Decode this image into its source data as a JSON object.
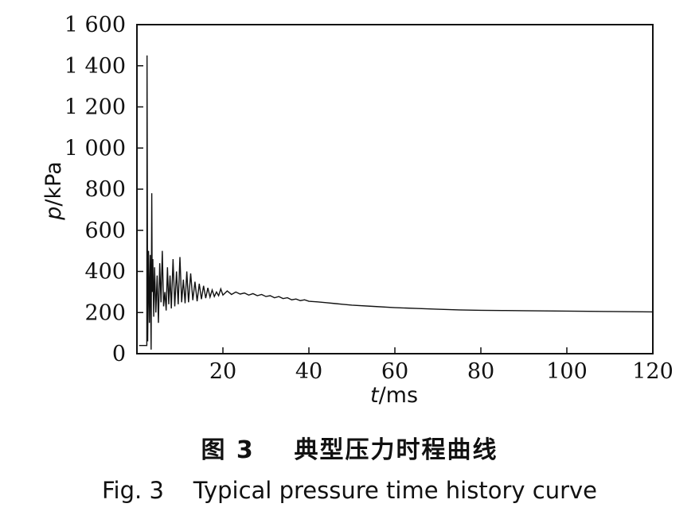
{
  "figure": {
    "caption_cn": "图 3    典型压力时程曲线",
    "caption_en": "Fig. 3    Typical pressure time history curve"
  },
  "chart_data": {
    "type": "line",
    "title": "",
    "xlabel_italic": "t",
    "xlabel_unit": "/ms",
    "ylabel_italic": "p",
    "ylabel_unit": "/kPa",
    "xlim": [
      0,
      120
    ],
    "ylim": [
      0,
      1600
    ],
    "x_ticks": [
      20,
      40,
      60,
      80,
      100,
      120
    ],
    "x_tick_labels": [
      "20",
      "40",
      "60",
      "80",
      "100",
      "120"
    ],
    "y_ticks": [
      0,
      200,
      400,
      600,
      800,
      1000,
      1200,
      1400,
      1600
    ],
    "y_tick_labels": [
      "0",
      "200",
      "400",
      "600",
      "800",
      "1 000",
      "1 200",
      "1 400",
      "1 600"
    ],
    "grid": false,
    "line_color": "#111111",
    "series": [
      {
        "x": [
          0.5,
          2.3,
          2.35,
          2.5,
          2.7,
          2.9,
          3.1,
          3.3,
          3.45,
          3.55,
          3.7,
          3.9,
          4.1,
          4.4,
          4.7,
          5.0,
          5.3,
          5.6,
          5.9,
          6.2,
          6.5,
          6.8,
          7.1,
          7.4,
          7.7,
          8.0,
          8.4,
          8.8,
          9.2,
          9.6,
          10.0,
          10.4,
          10.8,
          11.2,
          11.6,
          12.0,
          12.5,
          13.0,
          13.5,
          14.0,
          14.5,
          15.0,
          15.5,
          16.0,
          16.5,
          17.0,
          17.5,
          18.0,
          18.5,
          19.0,
          19.5,
          20.0,
          21,
          22,
          23,
          24,
          25,
          26,
          27,
          28,
          29,
          30,
          31,
          32,
          33,
          34,
          35,
          36,
          37,
          38,
          39,
          40,
          42,
          44,
          46,
          48,
          50,
          55,
          60,
          65,
          70,
          75,
          80,
          85,
          90,
          95,
          100,
          105,
          110,
          115,
          120
        ],
        "y": [
          40,
          40,
          1450,
          60,
          500,
          150,
          480,
          20,
          780,
          300,
          460,
          180,
          420,
          200,
          380,
          150,
          440,
          250,
          500,
          230,
          300,
          210,
          420,
          240,
          380,
          220,
          460,
          230,
          400,
          240,
          470,
          250,
          360,
          245,
          400,
          250,
          390,
          260,
          350,
          255,
          340,
          265,
          330,
          270,
          320,
          275,
          310,
          278,
          300,
          282,
          315,
          285,
          305,
          288,
          300,
          290,
          295,
          285,
          292,
          282,
          288,
          278,
          282,
          272,
          278,
          268,
          272,
          262,
          266,
          258,
          262,
          255,
          252,
          248,
          244,
          240,
          236,
          230,
          224,
          220,
          216,
          213,
          211,
          210,
          209,
          208,
          207,
          206,
          205,
          204,
          203
        ]
      }
    ]
  }
}
